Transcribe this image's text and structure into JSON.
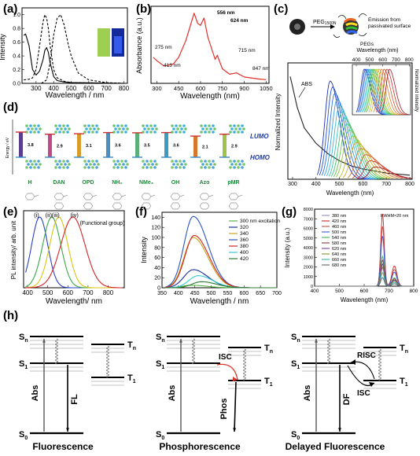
{
  "panels": {
    "a": {
      "label": "(a)",
      "ylabel": "Intensity",
      "xlabel": "Wavelength / nm",
      "yticks": [
        "0.0",
        "0.2",
        "0.4",
        "0.6",
        "0.8",
        "1.0"
      ],
      "xticks": [
        "300",
        "400",
        "500",
        "600",
        "700",
        "800"
      ]
    },
    "b": {
      "label": "(b)",
      "ylabel": "Absorbance (a.u.)",
      "xlabel": "Wavelength (nm)",
      "xticks": [
        "300",
        "450",
        "600",
        "750",
        "900",
        "1050"
      ],
      "annotations": [
        "275 nm",
        "413 nm",
        "556 nm",
        "624 nm",
        "715 nm",
        "847 nm"
      ]
    },
    "c": {
      "label": "(c)",
      "peg_label": "PEG",
      "peg_sub": "1500N",
      "emission_label_1": "Emission from",
      "emission_label_2": "passivated surface",
      "pegs_label": "PEGs",
      "top_axis": "Wavelength (nm)",
      "top_ticks": [
        "400",
        "500",
        "600",
        "700",
        "800"
      ],
      "ylabel": "Normalized Intensity",
      "ylabel_right": "Normalized intensity",
      "abs_label": "ABS",
      "xlabel": "Wavelength (nm)",
      "xticks": [
        "300",
        "400",
        "500",
        "600",
        "700",
        "800"
      ]
    },
    "d": {
      "label": "(d)",
      "energy_label": "Energy / eV",
      "lumo": "LUMO",
      "homo": "HOMO",
      "groups": [
        "H",
        "DAN",
        "OPD",
        "NH₂",
        "NMe₃",
        "OH",
        "Azo",
        "pMR"
      ],
      "gaps": [
        "3.8",
        "2.9",
        "3.1",
        "3.6",
        "3.5",
        "3.6",
        "2.1",
        "2.9"
      ],
      "caption": "(Functional group)"
    },
    "e": {
      "label": "(e)",
      "ylabel": "PL intensity/ arb. unit",
      "xlabel": "Wavelength/ nm",
      "curve_labels": [
        "(i)",
        "(ii)",
        "(iii)",
        "(iv)"
      ],
      "xticks": [
        "400",
        "500",
        "600",
        "700",
        "800"
      ]
    },
    "f": {
      "label": "(f)",
      "ylabel": "Intensity",
      "xlabel": "Wavelength / nm",
      "yticks": [
        "0",
        "20",
        "40",
        "60",
        "80",
        "100",
        "120",
        "140"
      ],
      "xticks": [
        "350",
        "400",
        "450",
        "500",
        "550",
        "600",
        "650",
        "700"
      ]
    },
    "g": {
      "label": "(g)",
      "ylabel": "Intensity (a.u.)",
      "xlabel": "Wavelength (nm)",
      "yticks": [
        "0",
        "1000",
        "2000",
        "3000",
        "4000",
        "5000",
        "6000",
        "7000",
        "8000"
      ],
      "xticks": [
        "400",
        "500",
        "600",
        "700",
        "800"
      ],
      "fwhm": "FWHM≈20 nm"
    },
    "h": {
      "label": "(h)",
      "diagrams": [
        {
          "title": "Fluorescence",
          "abs": "Abs",
          "emit": "FL"
        },
        {
          "title": "Phosphorescence",
          "abs": "Abs",
          "emit": "Phos",
          "isc": "ISC"
        },
        {
          "title": "Delayed Fluorescence",
          "abs": "Abs",
          "emit": "DF",
          "isc": "ISC",
          "risc": "RISC"
        }
      ],
      "s_n": "S",
      "s_n_sub": "n",
      "s_1": "S",
      "s_1_sub": "1",
      "s_0": "S",
      "s_0_sub": "0",
      "t_n": "T",
      "t_n_sub": "n",
      "t_1": "T",
      "t_1_sub": "1"
    }
  },
  "chart_data": [
    {
      "panel": "a",
      "type": "line",
      "series": [
        {
          "style": "solid",
          "x": [
            230,
            240,
            260,
            280,
            300,
            320,
            340,
            350,
            360,
            370,
            380,
            400,
            420,
            460,
            500,
            800
          ],
          "y": [
            0.7,
            0.72,
            0.55,
            0.2,
            0.12,
            0.18,
            0.35,
            0.48,
            0.52,
            0.45,
            0.3,
            0.1,
            0.04,
            0.02,
            0.01,
            0.0
          ]
        },
        {
          "style": "dashed",
          "x": [
            230,
            260,
            280,
            300,
            320,
            340,
            350,
            360,
            370,
            380,
            400,
            420,
            460,
            500,
            800
          ],
          "y": [
            0.05,
            0.06,
            0.08,
            0.2,
            0.55,
            0.9,
            1.0,
            0.95,
            0.8,
            0.55,
            0.2,
            0.08,
            0.03,
            0.01,
            0.0
          ]
        },
        {
          "style": "dashed",
          "x": [
            330,
            360,
            380,
            400,
            420,
            440,
            460,
            480,
            500,
            540,
            600,
            700,
            800
          ],
          "y": [
            0.0,
            0.05,
            0.3,
            0.7,
            0.95,
            1.0,
            0.85,
            0.6,
            0.4,
            0.15,
            0.05,
            0.01,
            0.0
          ]
        }
      ]
    },
    {
      "panel": "b",
      "type": "line",
      "x": [
        275,
        300,
        350,
        413,
        450,
        500,
        556,
        580,
        600,
        624,
        650,
        700,
        715,
        750,
        800,
        847,
        900,
        1000,
        1050
      ],
      "y": [
        0.35,
        0.3,
        0.22,
        0.25,
        0.35,
        0.6,
        1.0,
        0.85,
        0.82,
        0.93,
        0.65,
        0.32,
        0.38,
        0.18,
        0.1,
        0.12,
        0.06,
        0.03,
        0.02
      ]
    },
    {
      "panel": "c",
      "type": "line",
      "abs": {
        "x": [
          290,
          300,
          320,
          350,
          400,
          450,
          500,
          550,
          600,
          650,
          700,
          750,
          800
        ],
        "y": [
          1.0,
          0.9,
          0.7,
          0.5,
          0.35,
          0.25,
          0.18,
          0.13,
          0.1,
          0.08,
          0.06,
          0.05,
          0.04
        ]
      },
      "emission_peaks": [
        460,
        470,
        480,
        490,
        500,
        510,
        520,
        530,
        540,
        555,
        570,
        590,
        610,
        630,
        650
      ]
    },
    {
      "panel": "e",
      "type": "line",
      "peaks": [
        460,
        520,
        555,
        625
      ],
      "widths": [
        40,
        45,
        45,
        60
      ],
      "colors": [
        "#2a3fc9",
        "#3aa845",
        "#d8c40f",
        "#d42323"
      ]
    },
    {
      "panel": "f",
      "type": "line",
      "legend_title": "excitation",
      "series": [
        {
          "name": "300 nm excitation",
          "peak": 440,
          "height": 5,
          "color": "#57b346"
        },
        {
          "name": "320",
          "peak": 445,
          "height": 36,
          "color": "#1d2e9e"
        },
        {
          "name": "340",
          "peak": 445,
          "height": 100,
          "color": "#c8a51a"
        },
        {
          "name": "360",
          "peak": 445,
          "height": 142,
          "color": "#2754c9"
        },
        {
          "name": "380",
          "peak": 448,
          "height": 104,
          "color": "#d32222"
        },
        {
          "name": "400",
          "peak": 460,
          "height": 24,
          "color": "#39c7cf"
        },
        {
          "name": "420",
          "peak": 470,
          "height": 12,
          "color": "#2a7a2f"
        }
      ]
    },
    {
      "panel": "g",
      "type": "line",
      "series": [
        {
          "name": "380 nm",
          "color": "#8b8bcc",
          "height": 2000
        },
        {
          "name": "420 nm",
          "color": "#d32222",
          "height": 7500
        },
        {
          "name": "460 nm",
          "color": "#c05050",
          "height": 6200
        },
        {
          "name": "500 nm",
          "color": "#3a55d0",
          "height": 5200
        },
        {
          "name": "540 nm",
          "color": "#39b34a",
          "height": 3100
        },
        {
          "name": "580 nm",
          "color": "#8b3a3a",
          "height": 2700
        },
        {
          "name": "620 nm",
          "color": "#6f3fa5",
          "height": 2300
        },
        {
          "name": "640 nm",
          "color": "#8e8e2e",
          "height": 1900
        },
        {
          "name": "660 nm",
          "color": "#36b0b8",
          "height": 1400
        },
        {
          "name": "680 nm",
          "color": "#606060",
          "height": 900
        }
      ]
    }
  ]
}
